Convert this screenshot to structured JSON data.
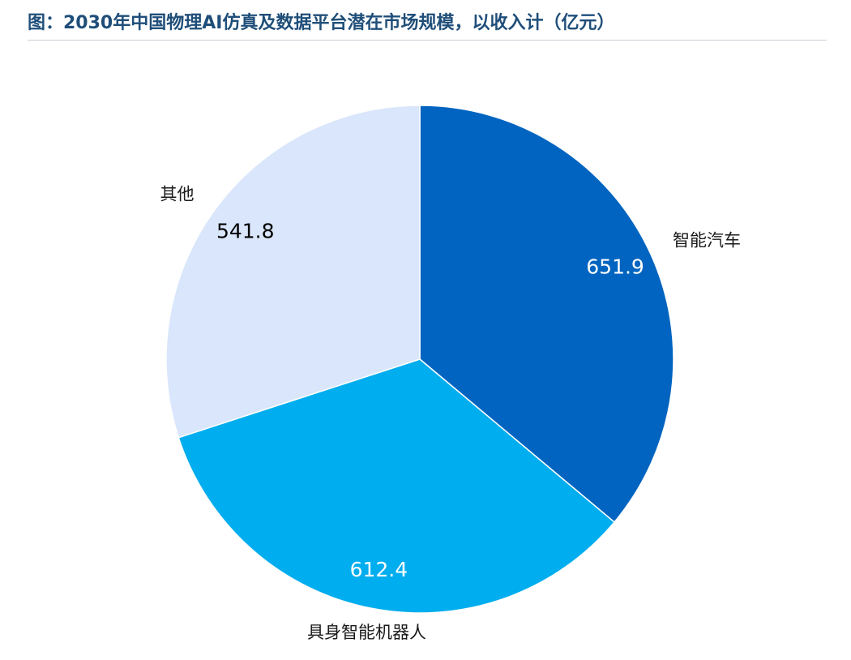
{
  "title": "图：2030年中国物理AI仿真及数据平台潜在市场规模，以收入计（亿元）",
  "chart_data": {
    "type": "pie",
    "title": "图：2030年中国物理AI仿真及数据平台潜在市场规模，以收入计（亿元）",
    "categories": [
      "智能汽车",
      "具身智能机器人",
      "其他"
    ],
    "values": [
      651.9,
      612.4,
      541.8
    ],
    "value_labels": [
      "651.9",
      "612.4",
      "541.8"
    ],
    "colors": [
      "#0064c0",
      "#00adee",
      "#d9e6fb"
    ],
    "value_label_colors": [
      "#ffffff",
      "#ffffff",
      "#000000"
    ],
    "start_angle_deg": 0,
    "direction": "clockwise",
    "legend": "none"
  }
}
